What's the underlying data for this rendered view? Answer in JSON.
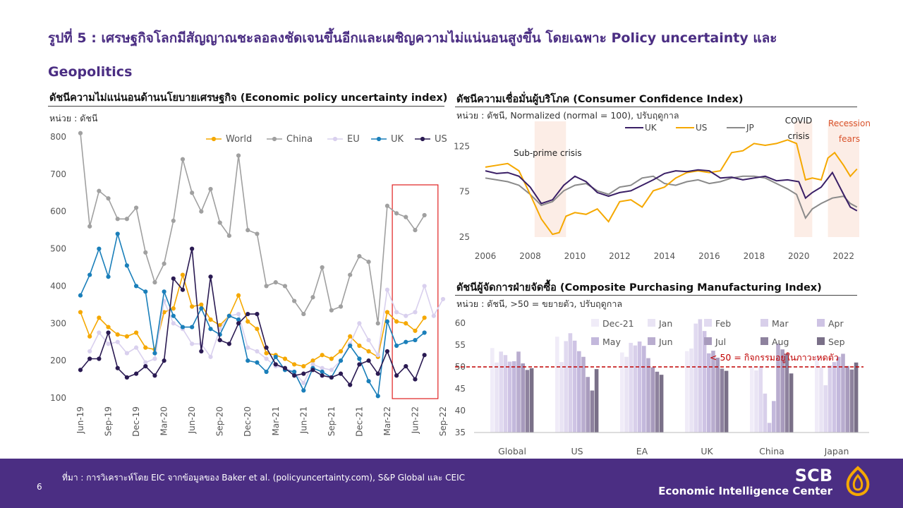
{
  "page": {
    "title": "รูปที่ 5 : เศรษฐกิจโลกมีสัญญาณชะลอลงชัดเจนขึ้นอีกและเผชิญความไม่แน่นอนสูงขึ้น โดยเฉพาะ Policy uncertainty และ Geopolitics",
    "source": "ที่มา : การวิเคราะห์โดย EIC จากข้อมูลของ Baker et al. (policyuncertainty.com), S&P Global และ CEIC",
    "page_number": "6",
    "brand_name": "SCB",
    "brand_sub": "Economic Intelligence Center"
  },
  "colors": {
    "accent": "#4b2e83",
    "highlight": "#e02020",
    "threshold": "#c00000"
  },
  "chart_data": [
    {
      "id": "epu",
      "type": "line",
      "title": "ดัชนีความไม่แน่นอนด้านนโยบายเศรษฐกิจ (Economic policy uncertainty index)",
      "unit": "หน่วย : ดัชนี",
      "x": [
        "Jun-19",
        "Jul-19",
        "Aug-19",
        "Sep-19",
        "Oct-19",
        "Nov-19",
        "Dec-19",
        "Jan-20",
        "Feb-20",
        "Mar-20",
        "Apr-20",
        "May-20",
        "Jun-20",
        "Jul-20",
        "Aug-20",
        "Sep-20",
        "Oct-20",
        "Nov-20",
        "Dec-20",
        "Jan-21",
        "Feb-21",
        "Mar-21",
        "Apr-21",
        "May-21",
        "Jun-21",
        "Jul-21",
        "Aug-21",
        "Sep-21",
        "Oct-21",
        "Nov-21",
        "Dec-21",
        "Jan-22",
        "Feb-22",
        "Mar-22",
        "Apr-22",
        "May-22",
        "Jun-22",
        "Jul-22",
        "Aug-22",
        "Sep-22"
      ],
      "xticks": [
        "Jun-19",
        "Sep-19",
        "Dec-19",
        "Mar-20",
        "Jun-20",
        "Sep-20",
        "Dec-20",
        "Mar-21",
        "Jun-21",
        "Sep-21",
        "Dec-21",
        "Mar-22",
        "Jun-22",
        "Sep-22"
      ],
      "yticks": [
        "100",
        "200",
        "300",
        "400",
        "500",
        "600",
        "700",
        "800"
      ],
      "ylim": [
        100,
        800
      ],
      "highlight_range": [
        "Apr-22",
        "Aug-22"
      ],
      "series": [
        {
          "name": "World",
          "color": "#f5a800",
          "values": [
            330,
            265,
            315,
            290,
            270,
            265,
            275,
            235,
            230,
            330,
            340,
            430,
            345,
            350,
            310,
            295,
            320,
            375,
            305,
            285,
            220,
            215,
            205,
            190,
            185,
            200,
            215,
            205,
            225,
            265,
            240,
            225,
            210,
            330,
            305,
            300,
            280,
            315,
            null,
            null
          ]
        },
        {
          "name": "China",
          "color": "#a0a0a0",
          "values": [
            810,
            560,
            655,
            635,
            580,
            580,
            610,
            490,
            410,
            460,
            575,
            740,
            650,
            600,
            660,
            570,
            535,
            750,
            550,
            540,
            400,
            410,
            400,
            360,
            325,
            370,
            450,
            335,
            345,
            430,
            480,
            465,
            300,
            615,
            595,
            585,
            550,
            590,
            null,
            null
          ]
        },
        {
          "name": "EU",
          "color": "#d9d0ee",
          "values": [
            null,
            225,
            275,
            245,
            250,
            220,
            235,
            195,
            205,
            360,
            300,
            285,
            245,
            245,
            210,
            285,
            320,
            325,
            235,
            225,
            205,
            185,
            180,
            170,
            140,
            190,
            180,
            175,
            200,
            245,
            300,
            255,
            215,
            390,
            330,
            320,
            330,
            400,
            320,
            365
          ]
        },
        {
          "name": "UK",
          "color": "#1a7fba",
          "values": [
            375,
            430,
            500,
            425,
            540,
            455,
            400,
            385,
            220,
            385,
            320,
            290,
            290,
            340,
            285,
            270,
            320,
            310,
            200,
            195,
            170,
            210,
            175,
            170,
            120,
            180,
            170,
            155,
            200,
            240,
            205,
            145,
            105,
            305,
            240,
            250,
            255,
            275,
            null,
            null
          ]
        },
        {
          "name": "US",
          "color": "#2a1a52",
          "values": [
            175,
            205,
            205,
            275,
            180,
            155,
            165,
            185,
            160,
            200,
            420,
            390,
            500,
            225,
            425,
            255,
            245,
            300,
            325,
            325,
            235,
            190,
            180,
            160,
            165,
            175,
            160,
            155,
            165,
            135,
            190,
            200,
            165,
            225,
            160,
            185,
            150,
            215,
            null,
            null
          ]
        }
      ]
    },
    {
      "id": "cci",
      "type": "line",
      "title": "ดัชนีความเชื่อมั่นผู้บริโภค (Consumer Confidence Index)",
      "unit": "หน่วย : ดัชนี, Normalized (normal = 100), ปรับฤดูกาล",
      "ylim": [
        25,
        140
      ],
      "yticks": [
        "25",
        "75",
        "125"
      ],
      "xlim": [
        2006,
        2022.7
      ],
      "xticks": [
        "2006",
        "2008",
        "2010",
        "2012",
        "2014",
        "2016",
        "2018",
        "2020",
        "2022"
      ],
      "shaded": [
        {
          "from": 2008.2,
          "to": 2009.6,
          "label": "Sub-prime crisis"
        },
        {
          "from": 2019.8,
          "to": 2020.6,
          "label": "COVID crisis"
        },
        {
          "from": 2021.3,
          "to": 2022.7,
          "label": "Recession fears"
        }
      ],
      "series": [
        {
          "name": "UK",
          "color": "#3a1f66",
          "points": [
            [
              2006,
              98
            ],
            [
              2006.5,
              95
            ],
            [
              2007,
              96
            ],
            [
              2007.5,
              92
            ],
            [
              2008,
              80
            ],
            [
              2008.5,
              62
            ],
            [
              2009,
              66
            ],
            [
              2009.5,
              82
            ],
            [
              2010,
              92
            ],
            [
              2010.5,
              86
            ],
            [
              2011,
              74
            ],
            [
              2011.5,
              70
            ],
            [
              2012,
              74
            ],
            [
              2012.5,
              76
            ],
            [
              2013,
              82
            ],
            [
              2013.5,
              88
            ],
            [
              2014,
              95
            ],
            [
              2014.5,
              98
            ],
            [
              2015,
              97
            ],
            [
              2015.5,
              99
            ],
            [
              2016,
              98
            ],
            [
              2016.5,
              90
            ],
            [
              2017,
              91
            ],
            [
              2017.5,
              88
            ],
            [
              2018,
              90
            ],
            [
              2018.5,
              92
            ],
            [
              2019,
              87
            ],
            [
              2019.5,
              88
            ],
            [
              2020,
              86
            ],
            [
              2020.3,
              68
            ],
            [
              2020.6,
              74
            ],
            [
              2021,
              80
            ],
            [
              2021.5,
              96
            ],
            [
              2022,
              72
            ],
            [
              2022.3,
              58
            ],
            [
              2022.6,
              54
            ]
          ]
        },
        {
          "name": "US",
          "color": "#f5a800",
          "points": [
            [
              2006,
              102
            ],
            [
              2006.5,
              104
            ],
            [
              2007,
              106
            ],
            [
              2007.5,
              98
            ],
            [
              2008,
              72
            ],
            [
              2008.5,
              45
            ],
            [
              2009,
              28
            ],
            [
              2009.3,
              30
            ],
            [
              2009.6,
              48
            ],
            [
              2010,
              52
            ],
            [
              2010.5,
              50
            ],
            [
              2011,
              56
            ],
            [
              2011.5,
              42
            ],
            [
              2012,
              64
            ],
            [
              2012.5,
              66
            ],
            [
              2013,
              58
            ],
            [
              2013.5,
              76
            ],
            [
              2014,
              80
            ],
            [
              2014.5,
              90
            ],
            [
              2015,
              96
            ],
            [
              2015.5,
              98
            ],
            [
              2016,
              96
            ],
            [
              2016.5,
              98
            ],
            [
              2017,
              118
            ],
            [
              2017.5,
              120
            ],
            [
              2018,
              128
            ],
            [
              2018.5,
              126
            ],
            [
              2019,
              128
            ],
            [
              2019.5,
              132
            ],
            [
              2019.9,
              128
            ],
            [
              2020.3,
              88
            ],
            [
              2020.6,
              90
            ],
            [
              2021,
              88
            ],
            [
              2021.3,
              112
            ],
            [
              2021.6,
              118
            ],
            [
              2022,
              104
            ],
            [
              2022.3,
              92
            ],
            [
              2022.6,
              100
            ]
          ]
        },
        {
          "name": "JP",
          "color": "#8a8a8a",
          "points": [
            [
              2006,
              90
            ],
            [
              2006.5,
              88
            ],
            [
              2007,
              86
            ],
            [
              2007.5,
              82
            ],
            [
              2008,
              72
            ],
            [
              2008.5,
              60
            ],
            [
              2009,
              64
            ],
            [
              2009.5,
              76
            ],
            [
              2010,
              82
            ],
            [
              2010.5,
              84
            ],
            [
              2011,
              76
            ],
            [
              2011.5,
              72
            ],
            [
              2012,
              80
            ],
            [
              2012.5,
              82
            ],
            [
              2013,
              90
            ],
            [
              2013.5,
              92
            ],
            [
              2014,
              84
            ],
            [
              2014.5,
              82
            ],
            [
              2015,
              86
            ],
            [
              2015.5,
              88
            ],
            [
              2016,
              84
            ],
            [
              2016.5,
              86
            ],
            [
              2017,
              90
            ],
            [
              2017.5,
              92
            ],
            [
              2018,
              92
            ],
            [
              2018.5,
              90
            ],
            [
              2019,
              84
            ],
            [
              2019.5,
              78
            ],
            [
              2019.9,
              72
            ],
            [
              2020.3,
              46
            ],
            [
              2020.6,
              56
            ],
            [
              2021,
              62
            ],
            [
              2021.5,
              68
            ],
            [
              2022,
              70
            ],
            [
              2022.3,
              62
            ],
            [
              2022.6,
              58
            ]
          ]
        }
      ]
    },
    {
      "id": "pmi",
      "type": "bar",
      "title": "ดัชนีผู้จัดการฝ่ายจัดซื้อ (Composite Purchasing Manufacturing Index)",
      "unit": "หน่วย : ดัชนี, >50 = ขยายตัว, ปรับฤดูกาล",
      "ylim": [
        35,
        60
      ],
      "yticks": [
        "35",
        "40",
        "45",
        "50",
        "55",
        "60"
      ],
      "threshold": 50,
      "threshold_label": "< 50 = กิจกรรมอยู่ในภาวะหดตัว",
      "categories": [
        "Global",
        "US",
        "EA",
        "UK",
        "China",
        "Japan"
      ],
      "series": [
        {
          "name": "Dec-21",
          "color": "#f0ecf8",
          "values": [
            54.3,
            56.9,
            53.3,
            53.6,
            50.0,
            52.5
          ]
        },
        {
          "name": "Jan",
          "color": "#e9e4f4",
          "values": [
            51.0,
            51.1,
            52.3,
            54.2,
            49.2,
            49.9
          ]
        },
        {
          "name": "Feb",
          "color": "#e1daf0",
          "values": [
            53.5,
            55.9,
            55.5,
            59.9,
            50.1,
            45.8
          ]
        },
        {
          "name": "Mar",
          "color": "#d8cfea",
          "values": [
            52.7,
            57.7,
            54.9,
            60.9,
            43.9,
            50.3
          ]
        },
        {
          "name": "Apr",
          "color": "#cec3e4",
          "values": [
            51.2,
            56.0,
            55.8,
            58.2,
            37.2,
            51.1
          ]
        },
        {
          "name": "May",
          "color": "#c3b8dc",
          "values": [
            51.3,
            53.6,
            54.8,
            53.1,
            42.2,
            52.3
          ]
        },
        {
          "name": "Jun",
          "color": "#b9adcf",
          "values": [
            53.5,
            52.3,
            52.0,
            53.7,
            55.3,
            53.0
          ]
        },
        {
          "name": "Jul",
          "color": "#a89bbd",
          "values": [
            50.8,
            47.7,
            49.9,
            52.1,
            54.0,
            50.2
          ]
        },
        {
          "name": "Aug",
          "color": "#8e829e",
          "values": [
            49.3,
            44.6,
            48.9,
            49.6,
            53.0,
            49.4
          ]
        },
        {
          "name": "Sep",
          "color": "#7a7088",
          "values": [
            49.7,
            49.5,
            48.2,
            49.1,
            48.5,
            51.0
          ]
        }
      ]
    }
  ]
}
